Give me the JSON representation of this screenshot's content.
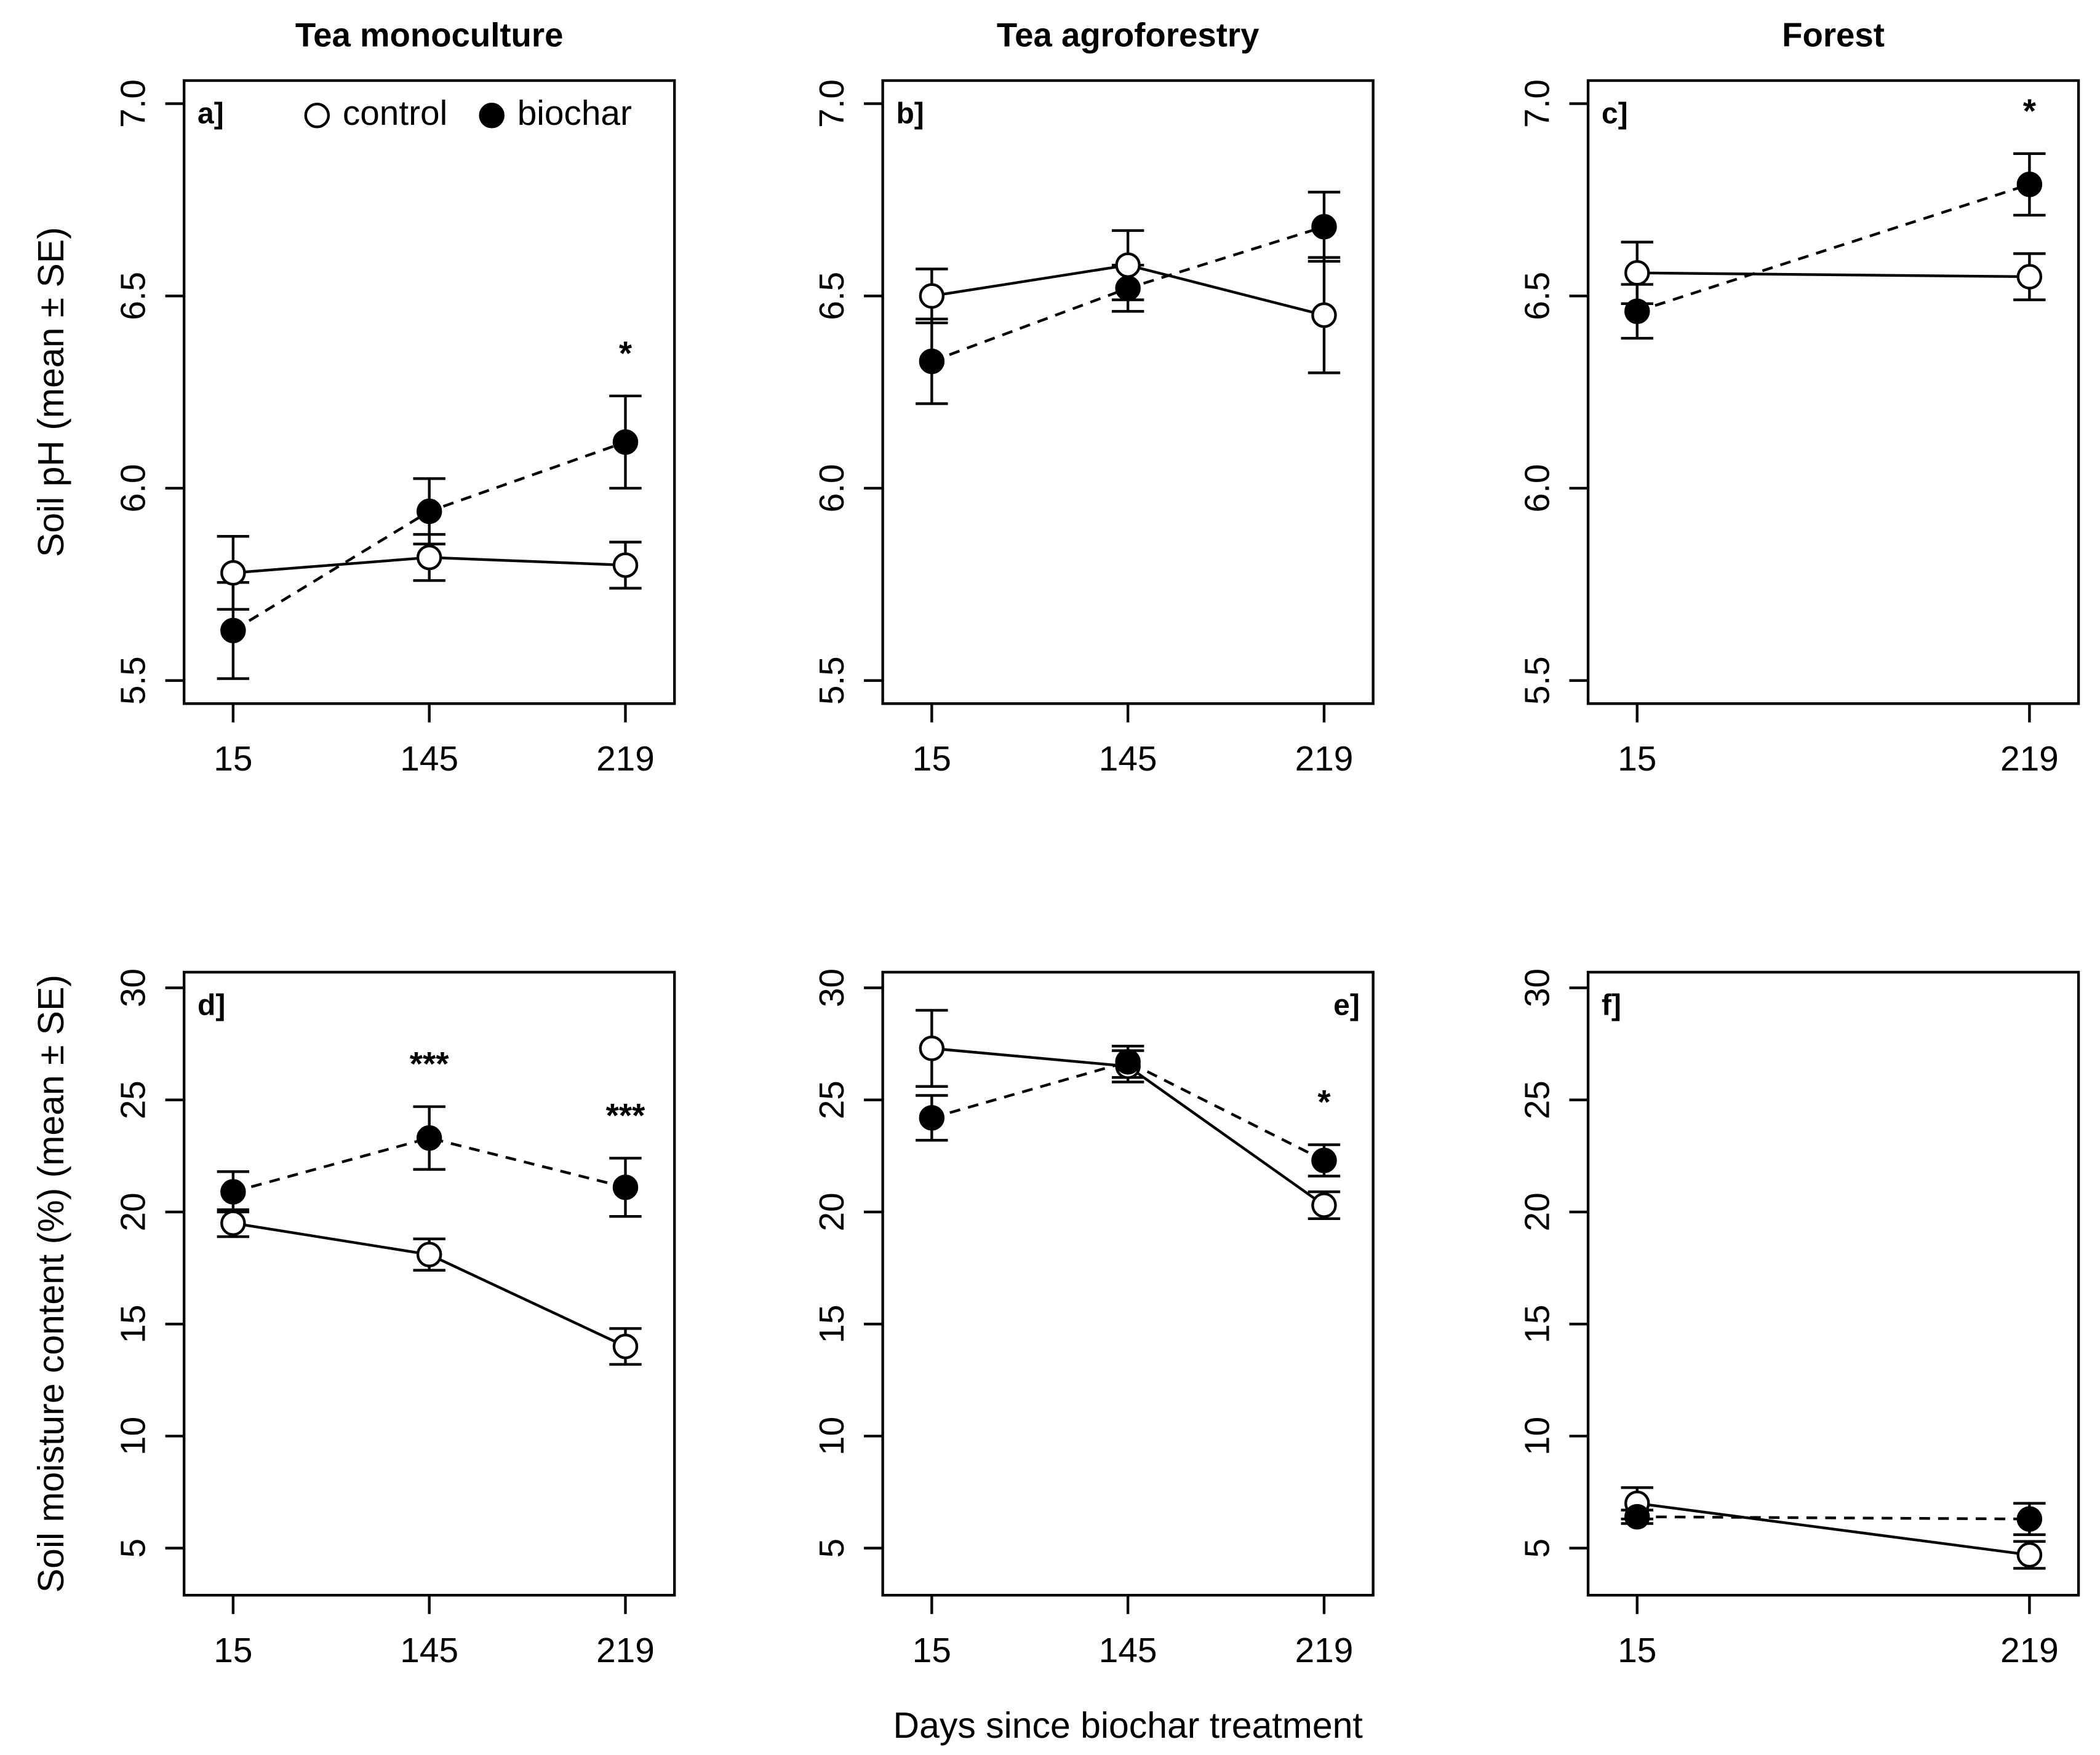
{
  "chart_data": [
    {
      "type": "line",
      "title": "Tea monoculture",
      "panel_label": "a]",
      "panel_label_loc": "upper left",
      "ylabel": "Soil pH (mean ± SE)",
      "legend": "upper right",
      "categories": [
        "15",
        "145",
        "219"
      ],
      "ylim": [
        5.44,
        7.06
      ],
      "yticks": [
        5.5,
        {
          "value": 6,
          "label": "6.0"
        },
        6.5,
        {
          "value": 7,
          "label": "7.0"
        }
      ],
      "series": [
        {
          "name": "control",
          "color": "#000000",
          "marker": "open",
          "line": "solid",
          "values": [
            5.78,
            5.82,
            5.8
          ],
          "errors": [
            0.095,
            0.06,
            0.06
          ]
        },
        {
          "name": "biochar",
          "color": "#000000",
          "marker": "filled",
          "line": "dashed",
          "values": [
            5.63,
            5.94,
            6.12
          ],
          "errors": [
            0.125,
            0.085,
            0.12
          ]
        }
      ],
      "annotations": [
        null,
        null,
        "*"
      ]
    },
    {
      "type": "line",
      "title": "Tea agroforestry",
      "panel_label": "b]",
      "panel_label_loc": "upper left",
      "categories": [
        "15",
        "145",
        "219"
      ],
      "ylim": [
        5.44,
        7.06
      ],
      "yticks": [
        5.5,
        {
          "value": 6,
          "label": "6.0"
        },
        6.5,
        {
          "value": 7,
          "label": "7.0"
        }
      ],
      "series": [
        {
          "name": "control",
          "color": "#000000",
          "marker": "open",
          "line": "solid",
          "values": [
            6.5,
            6.58,
            6.45
          ],
          "errors": [
            0.07,
            0.09,
            0.15
          ]
        },
        {
          "name": "biochar",
          "color": "#000000",
          "marker": "filled",
          "line": "dashed",
          "values": [
            6.33,
            6.52,
            6.68
          ],
          "errors": [
            0.11,
            0.06,
            0.09
          ]
        }
      ],
      "annotations": [
        null,
        null,
        null
      ]
    },
    {
      "type": "line",
      "title": "Forest",
      "panel_label": "c]",
      "panel_label_loc": "upper left",
      "categories": [
        "15",
        "219"
      ],
      "ylim": [
        5.44,
        7.06
      ],
      "yticks": [
        5.5,
        {
          "value": 6,
          "label": "6.0"
        },
        6.5,
        {
          "value": 7,
          "label": "7.0"
        }
      ],
      "series": [
        {
          "name": "control",
          "color": "#000000",
          "marker": "open",
          "line": "solid",
          "values": [
            6.56,
            6.55
          ],
          "errors": [
            0.08,
            0.06
          ]
        },
        {
          "name": "biochar",
          "color": "#000000",
          "marker": "filled",
          "line": "dashed",
          "values": [
            6.46,
            6.79
          ],
          "errors": [
            0.07,
            0.08
          ]
        }
      ],
      "annotations": [
        null,
        "*"
      ]
    },
    {
      "type": "line",
      "panel_label": "d]",
      "panel_label_loc": "upper left",
      "ylabel": "Soil moisture content (%) (mean ± SE)",
      "categories": [
        "15",
        "145",
        "219"
      ],
      "ylim": [
        2.9,
        30.7
      ],
      "yticks": [
        5,
        10,
        15,
        20,
        25,
        30
      ],
      "series": [
        {
          "name": "control",
          "color": "#000000",
          "marker": "open",
          "line": "solid",
          "values": [
            19.5,
            18.1,
            14.0
          ],
          "errors": [
            0.6,
            0.7,
            0.8
          ]
        },
        {
          "name": "biochar",
          "color": "#000000",
          "marker": "filled",
          "line": "dashed",
          "values": [
            20.9,
            23.3,
            21.1
          ],
          "errors": [
            0.9,
            1.4,
            1.3
          ]
        }
      ],
      "annotations": [
        null,
        "***",
        "***"
      ]
    },
    {
      "type": "line",
      "panel_label": "e]",
      "panel_label_loc": "upper right",
      "xlabel": "Days since biochar treatment",
      "categories": [
        "15",
        "145",
        "219"
      ],
      "ylim": [
        2.9,
        30.7
      ],
      "yticks": [
        5,
        10,
        15,
        20,
        25,
        30
      ],
      "series": [
        {
          "name": "control",
          "color": "#000000",
          "marker": "open",
          "line": "solid",
          "values": [
            27.3,
            26.5,
            20.3
          ],
          "errors": [
            1.7,
            0.7,
            0.6
          ]
        },
        {
          "name": "biochar",
          "color": "#000000",
          "marker": "filled",
          "line": "dashed",
          "values": [
            24.2,
            26.7,
            22.3
          ],
          "errors": [
            1.0,
            0.7,
            0.7
          ]
        }
      ],
      "annotations": [
        null,
        null,
        "*"
      ]
    },
    {
      "type": "line",
      "panel_label": "f]",
      "panel_label_loc": "upper left",
      "categories": [
        "15",
        "219"
      ],
      "ylim": [
        2.9,
        30.7
      ],
      "yticks": [
        5,
        10,
        15,
        20,
        25,
        30
      ],
      "series": [
        {
          "name": "control",
          "color": "#000000",
          "marker": "open",
          "line": "solid",
          "values": [
            7.0,
            4.7
          ],
          "errors": [
            0.7,
            0.6
          ]
        },
        {
          "name": "biochar",
          "color": "#000000",
          "marker": "filled",
          "line": "dashed",
          "values": [
            6.4,
            6.3
          ],
          "errors": [
            0.3,
            0.7
          ]
        }
      ],
      "annotations": [
        null,
        null
      ]
    }
  ]
}
